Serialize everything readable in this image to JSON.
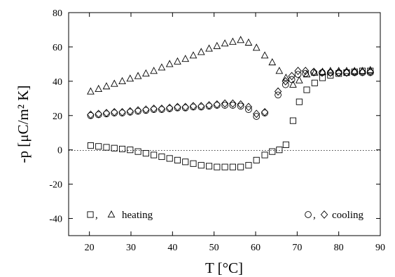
{
  "chart_data": {
    "type": "scatter",
    "xlabel": "T [°C]",
    "ylabel": "-p [μC/m² K]",
    "xlim": [
      15,
      90
    ],
    "ylim": [
      -50,
      80
    ],
    "xticks": [
      "20",
      "30",
      "40",
      "50",
      "60",
      "70",
      "80",
      "90"
    ],
    "yticks": [
      "-40",
      "-20",
      "0",
      "20",
      "40",
      "60",
      "80"
    ],
    "reference_line": {
      "y": 0,
      "style": "dotted"
    },
    "legend": {
      "left": {
        "markers": [
          "square",
          "triangle"
        ],
        "text": "heating",
        "separator": ",",
        "position": "bottom-left"
      },
      "right": {
        "markers": [
          "circle",
          "diamond"
        ],
        "text": "cooling",
        "separator": ",",
        "position": "bottom-right"
      }
    },
    "series": [
      {
        "marker": "triangle",
        "points": [
          [
            20.3,
            34
          ],
          [
            22.2,
            35.5
          ],
          [
            24.1,
            37
          ],
          [
            26,
            38.5
          ],
          [
            27.9,
            40
          ],
          [
            29.8,
            41.5
          ],
          [
            31.7,
            43
          ],
          [
            33.6,
            44.5
          ],
          [
            35.5,
            46
          ],
          [
            37.4,
            48
          ],
          [
            39.3,
            50
          ],
          [
            41.2,
            51.5
          ],
          [
            43.1,
            53
          ],
          [
            45,
            55
          ],
          [
            46.9,
            57
          ],
          [
            48.8,
            59
          ],
          [
            50.7,
            60.5
          ],
          [
            52.6,
            62
          ],
          [
            54.5,
            63
          ],
          [
            56.4,
            64
          ],
          [
            58.3,
            62.5
          ],
          [
            60.2,
            59.5
          ],
          [
            62.2,
            55
          ],
          [
            64,
            51
          ],
          [
            65.7,
            46
          ],
          [
            67.3,
            42
          ],
          [
            69,
            38
          ],
          [
            70.5,
            40.5
          ],
          [
            72.3,
            44
          ],
          [
            74.2,
            45
          ],
          [
            76.1,
            45.5
          ],
          [
            78,
            46
          ],
          [
            80,
            46
          ],
          [
            81.9,
            46
          ],
          [
            83.8,
            46
          ],
          [
            85.7,
            46
          ],
          [
            87.6,
            46.5
          ]
        ]
      },
      {
        "marker": "square",
        "points": [
          [
            20.3,
            2.5
          ],
          [
            22.2,
            2
          ],
          [
            24.1,
            1.5
          ],
          [
            26,
            1
          ],
          [
            27.9,
            0.5
          ],
          [
            29.8,
            0
          ],
          [
            31.7,
            -1
          ],
          [
            33.6,
            -2
          ],
          [
            35.5,
            -3
          ],
          [
            37.4,
            -4
          ],
          [
            39.3,
            -5
          ],
          [
            41.2,
            -6
          ],
          [
            43.1,
            -7
          ],
          [
            45,
            -8
          ],
          [
            46.9,
            -9
          ],
          [
            48.8,
            -9.5
          ],
          [
            50.7,
            -10
          ],
          [
            52.6,
            -10
          ],
          [
            54.5,
            -10
          ],
          [
            56.4,
            -10
          ],
          [
            58.3,
            -9
          ],
          [
            60.2,
            -6
          ],
          [
            62.2,
            -3
          ],
          [
            64,
            -1
          ],
          [
            65.7,
            0
          ],
          [
            67.3,
            3
          ],
          [
            69,
            17
          ],
          [
            70.5,
            28
          ],
          [
            72.3,
            35
          ],
          [
            74.2,
            39
          ],
          [
            76.1,
            42
          ],
          [
            78,
            43.5
          ],
          [
            80,
            44.5
          ],
          [
            81.9,
            45
          ],
          [
            83.8,
            45.5
          ],
          [
            85.7,
            46
          ],
          [
            87.6,
            46
          ]
        ]
      },
      {
        "marker": "diamond",
        "points": [
          [
            20.3,
            20.5
          ],
          [
            22.2,
            21
          ],
          [
            24.1,
            21.5
          ],
          [
            26,
            22
          ],
          [
            27.9,
            22
          ],
          [
            29.8,
            22.5
          ],
          [
            31.7,
            23
          ],
          [
            33.6,
            23.5
          ],
          [
            35.5,
            24
          ],
          [
            37.4,
            24
          ],
          [
            39.3,
            24.5
          ],
          [
            41.2,
            25
          ],
          [
            43.1,
            25
          ],
          [
            45,
            25.5
          ],
          [
            46.9,
            25.5
          ],
          [
            48.8,
            26
          ],
          [
            50.7,
            26.5
          ],
          [
            52.6,
            27
          ],
          [
            54.5,
            27
          ],
          [
            56.4,
            26.5
          ],
          [
            58.3,
            25
          ],
          [
            60.2,
            21
          ],
          [
            62.2,
            22
          ],
          [
            65.4,
            34
          ],
          [
            67.2,
            40
          ],
          [
            68.7,
            43
          ],
          [
            70.2,
            46
          ],
          [
            72,
            46
          ],
          [
            74,
            45.5
          ],
          [
            76,
            45
          ],
          [
            78,
            45
          ],
          [
            80,
            45
          ],
          [
            81.9,
            45
          ],
          [
            83.8,
            45.5
          ],
          [
            85.7,
            45.5
          ],
          [
            87.6,
            45.5
          ]
        ]
      },
      {
        "marker": "circle",
        "points": [
          [
            20.3,
            20
          ],
          [
            22.2,
            20.5
          ],
          [
            24.1,
            21
          ],
          [
            26,
            21.5
          ],
          [
            27.9,
            21.5
          ],
          [
            29.8,
            22
          ],
          [
            31.7,
            22.5
          ],
          [
            33.6,
            23
          ],
          [
            35.5,
            23.5
          ],
          [
            37.4,
            23.5
          ],
          [
            39.3,
            24
          ],
          [
            41.2,
            24.5
          ],
          [
            43.1,
            24.5
          ],
          [
            45,
            25
          ],
          [
            46.9,
            25
          ],
          [
            48.8,
            25.5
          ],
          [
            50.7,
            26
          ],
          [
            52.6,
            26
          ],
          [
            54.5,
            26
          ],
          [
            56.4,
            25.5
          ],
          [
            58.3,
            23.5
          ],
          [
            60.2,
            19.5
          ],
          [
            62.2,
            21.5
          ],
          [
            65.4,
            32
          ],
          [
            67.2,
            38
          ],
          [
            68.7,
            41
          ],
          [
            70.2,
            44
          ],
          [
            72,
            44.5
          ],
          [
            74,
            45
          ],
          [
            76,
            45
          ],
          [
            78,
            45
          ],
          [
            80,
            45
          ],
          [
            81.9,
            45
          ],
          [
            83.8,
            45
          ],
          [
            85.7,
            45
          ],
          [
            87.6,
            45
          ]
        ]
      }
    ]
  }
}
